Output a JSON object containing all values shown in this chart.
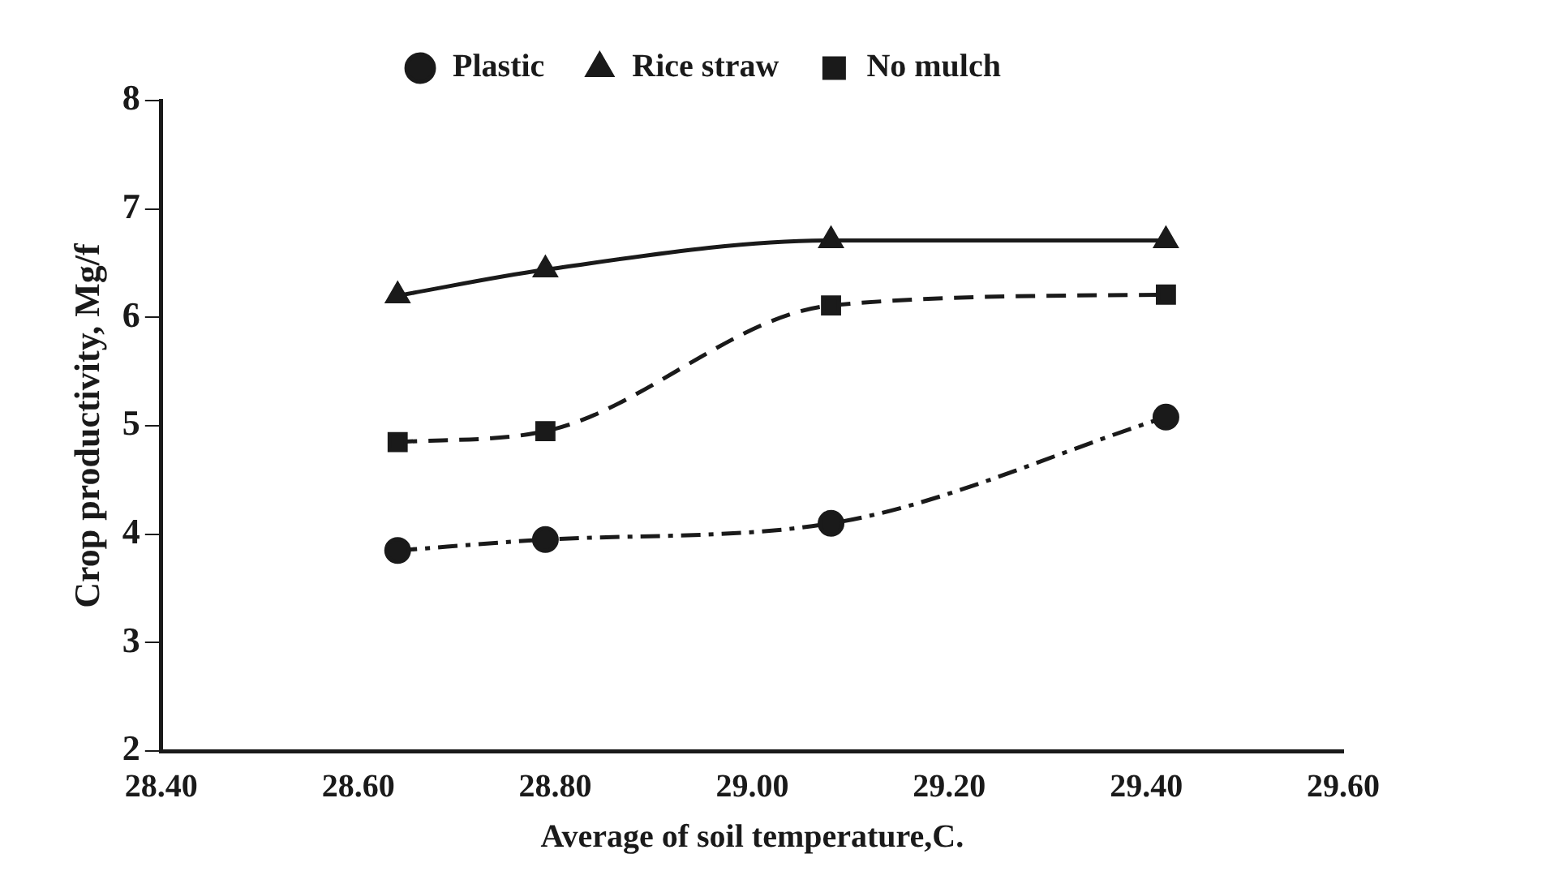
{
  "chart_data": {
    "type": "line",
    "xlabel": "Average of soil temperature,C.",
    "ylabel": "Crop productivity, Mg/f",
    "xlim": [
      28.4,
      29.6
    ],
    "xticks": [
      {
        "value": 28.4,
        "label": "28.40"
      },
      {
        "value": 28.6,
        "label": "28.60"
      },
      {
        "value": 28.8,
        "label": "28.80"
      },
      {
        "value": 29.0,
        "label": "29.00"
      },
      {
        "value": 29.2,
        "label": "29.20"
      },
      {
        "value": 29.4,
        "label": "29.40"
      },
      {
        "value": 29.6,
        "label": "29.60"
      }
    ],
    "ylim": [
      2,
      8
    ],
    "yticks": [
      2,
      3,
      4,
      5,
      6,
      7,
      8
    ],
    "grid": false,
    "legend": "top",
    "x": [
      28.64,
      28.79,
      29.08,
      29.42
    ],
    "series": [
      {
        "name": "Plastic",
        "color": "#1a1a1a",
        "values": [
          3.85,
          3.95,
          4.1,
          5.08
        ],
        "marker": "circle",
        "line_style": "dotted"
      },
      {
        "name": "Rice straw",
        "color": "#1a1a1a",
        "values": [
          6.2,
          6.44,
          6.71,
          6.71
        ],
        "marker": "triangle",
        "line_style": "solid"
      },
      {
        "name": "No mulch",
        "color": "#1a1a1a",
        "values": [
          4.85,
          4.95,
          6.11,
          6.21
        ],
        "marker": "square",
        "line_style": "dashed"
      }
    ]
  }
}
